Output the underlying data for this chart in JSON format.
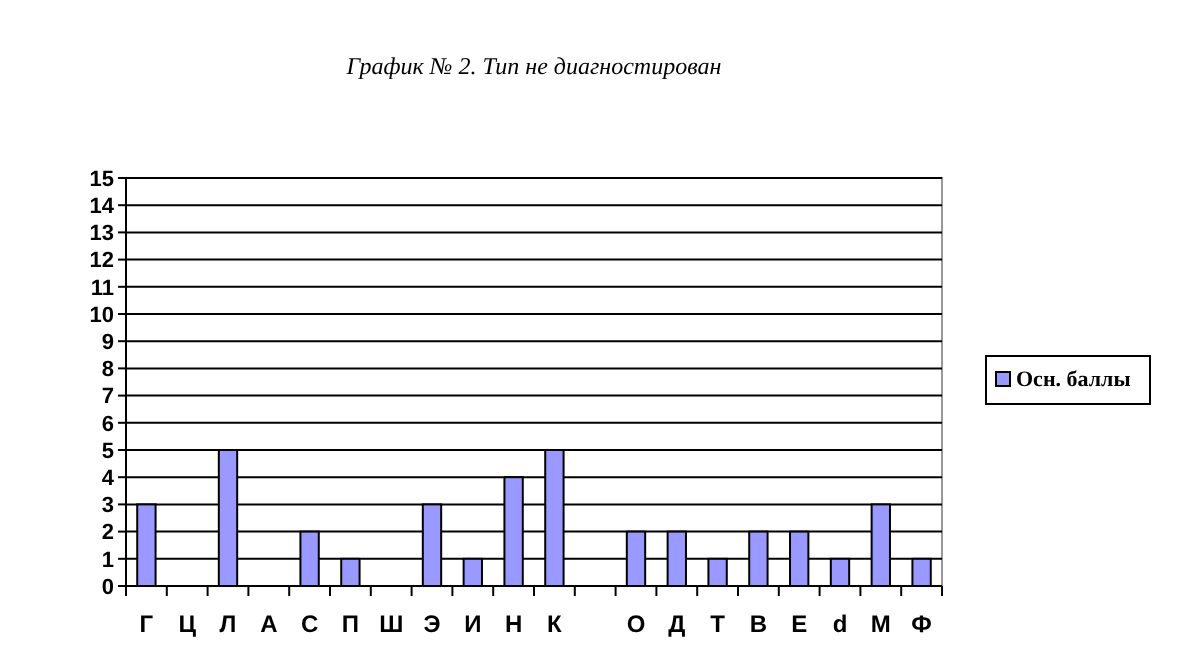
{
  "chart_data": {
    "type": "bar",
    "title": "График № 2. Тип не диагностирован",
    "categories": [
      "Г",
      "Ц",
      "Л",
      "А",
      "С",
      "П",
      "Ш",
      "Э",
      "И",
      "Н",
      "К",
      null,
      "О",
      "Д",
      "Т",
      "В",
      "Е",
      "d",
      "М",
      "Ф"
    ],
    "series": [
      {
        "name": "Осн. баллы",
        "color": "#9999ff",
        "values": [
          3,
          0,
          5,
          0,
          2,
          1,
          0,
          3,
          1,
          4,
          5,
          0,
          2,
          2,
          1,
          2,
          2,
          1,
          3,
          1
        ]
      }
    ],
    "ylim": [
      0,
      15
    ],
    "yticks": [
      0,
      1,
      2,
      3,
      4,
      5,
      6,
      7,
      8,
      9,
      10,
      11,
      12,
      13,
      14,
      15
    ],
    "grid": "y",
    "legend": "right"
  }
}
